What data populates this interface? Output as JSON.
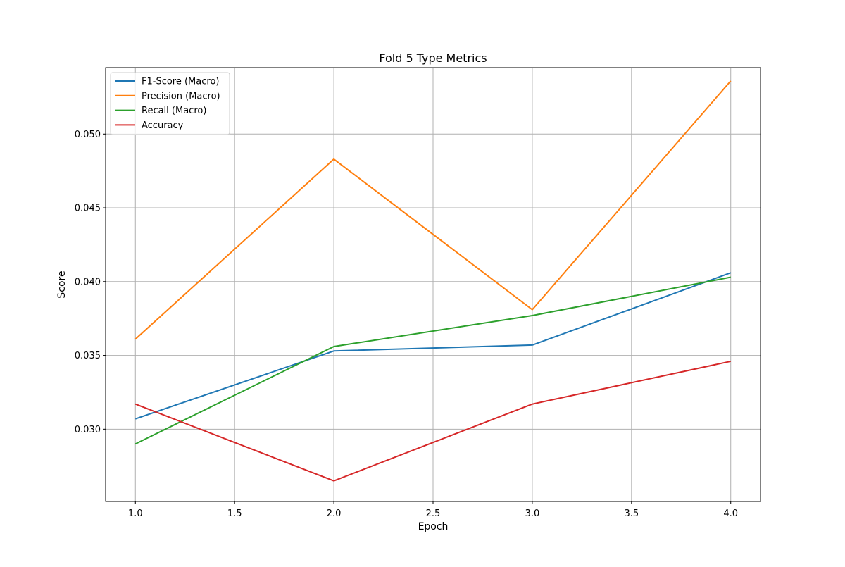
{
  "chart_data": {
    "type": "line",
    "title": "Fold 5 Type Metrics",
    "xlabel": "Epoch",
    "ylabel": "Score",
    "x": [
      1.0,
      2.0,
      3.0,
      4.0
    ],
    "xlim": [
      0.85,
      4.15
    ],
    "ylim": [
      0.0251,
      0.0545
    ],
    "xticks": [
      1.0,
      1.5,
      2.0,
      2.5,
      3.0,
      3.5,
      4.0
    ],
    "xtick_labels": [
      "1.0",
      "1.5",
      "2.0",
      "2.5",
      "3.0",
      "3.5",
      "4.0"
    ],
    "yticks": [
      0.03,
      0.035,
      0.04,
      0.045,
      0.05
    ],
    "ytick_labels": [
      "0.030",
      "0.035",
      "0.040",
      "0.045",
      "0.050"
    ],
    "grid": true,
    "legend_position": "top-left",
    "series": [
      {
        "name": "F1-Score (Macro)",
        "color": "#1f77b4",
        "values": [
          0.0307,
          0.0353,
          0.0357,
          0.0406
        ]
      },
      {
        "name": "Precision (Macro)",
        "color": "#ff7f0e",
        "values": [
          0.0361,
          0.0483,
          0.0381,
          0.0536
        ]
      },
      {
        "name": "Recall (Macro)",
        "color": "#2ca02c",
        "values": [
          0.029,
          0.0356,
          0.0377,
          0.0403
        ]
      },
      {
        "name": "Accuracy",
        "color": "#d62728",
        "values": [
          0.0317,
          0.0265,
          0.0317,
          0.0346
        ]
      }
    ]
  }
}
